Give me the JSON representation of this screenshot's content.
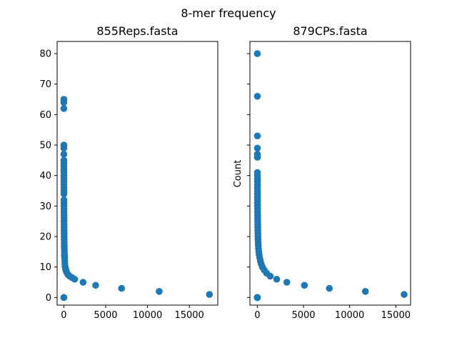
{
  "figure": {
    "suptitle": "8-mer frequency"
  },
  "colors": {
    "marker": "#1f77b4",
    "axes": "#000000",
    "background": "#ffffff"
  },
  "chart_data": [
    {
      "type": "scatter",
      "title": "855Reps.fasta",
      "xlabel": "",
      "ylabel": "",
      "xlim": [
        -800,
        18400
      ],
      "ylim": [
        -2.5,
        84
      ],
      "xticks": [
        0,
        5000,
        10000,
        15000
      ],
      "yticks": [
        0,
        10,
        20,
        30,
        40,
        50,
        60,
        70,
        80
      ],
      "ytick_labels_visible": true,
      "grid": false,
      "x": [
        17400,
        11400,
        6900,
        3800,
        2300,
        1300,
        1000,
        700,
        500,
        400,
        300,
        250,
        200,
        160,
        130,
        110,
        95,
        85,
        75,
        68,
        62,
        56,
        52,
        48,
        44,
        40,
        37,
        34,
        31,
        29,
        27,
        25,
        23,
        21,
        20,
        18,
        17,
        16,
        15,
        14,
        13,
        12,
        11,
        10,
        9,
        8,
        7,
        6,
        5,
        5,
        4,
        3,
        3,
        2,
        2,
        1,
        1,
        1
      ],
      "y": [
        1,
        2,
        3,
        4,
        5,
        6,
        6.5,
        7,
        7.5,
        8,
        8.5,
        9,
        9.5,
        10,
        11,
        12,
        13,
        13.5,
        14,
        15,
        16,
        16.5,
        17,
        18,
        19,
        20,
        21,
        22,
        23,
        24,
        25,
        26,
        27,
        28,
        29,
        30,
        31,
        32,
        34,
        35,
        36,
        37,
        38,
        39,
        40,
        41,
        42,
        43,
        44,
        45,
        47,
        49,
        50,
        62,
        64,
        65,
        0,
        0
      ]
    },
    {
      "type": "scatter",
      "title": "879CPs.fasta",
      "xlabel": "",
      "ylabel": "Count",
      "xlim": [
        -800,
        16600
      ],
      "ylim": [
        -2.5,
        84
      ],
      "xticks": [
        0,
        5000,
        10000,
        15000
      ],
      "yticks": [
        0,
        10,
        20,
        30,
        40,
        50,
        60,
        70,
        80
      ],
      "ytick_labels_visible": false,
      "grid": false,
      "x": [
        15900,
        11700,
        7800,
        5100,
        3200,
        2100,
        1400,
        1000,
        750,
        550,
        420,
        330,
        260,
        200,
        160,
        130,
        110,
        90,
        80,
        70,
        62,
        55,
        50,
        45,
        40,
        36,
        33,
        30,
        27,
        25,
        23,
        21,
        19,
        17,
        16,
        15,
        14,
        13,
        12,
        11,
        10,
        9,
        8,
        7,
        6,
        5,
        4,
        3,
        3,
        2,
        2,
        1,
        1
      ],
      "y": [
        1,
        2,
        3,
        4,
        5,
        6,
        7,
        8,
        9,
        10,
        11,
        12,
        13,
        14,
        15,
        16,
        17,
        18,
        19,
        20,
        21,
        22,
        23,
        24,
        25,
        26,
        27,
        28,
        29,
        30,
        31,
        32,
        33,
        34,
        35,
        36,
        37,
        38,
        39,
        40,
        41,
        46,
        47,
        49,
        53,
        66,
        80,
        0,
        0,
        0,
        0,
        0,
        0
      ]
    }
  ]
}
